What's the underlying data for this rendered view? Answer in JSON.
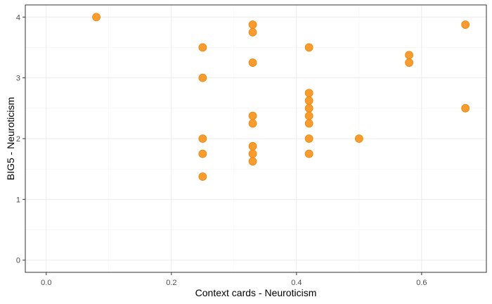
{
  "chart_data": {
    "type": "scatter",
    "title": "",
    "xlabel": "Context cards - Neuroticism",
    "ylabel": "BIG5 - Neuroticism",
    "xlim": [
      -0.0335,
      0.7035
    ],
    "ylim": [
      -0.2,
      4.2
    ],
    "x_ticks": [
      0.0,
      0.2,
      0.4,
      0.6
    ],
    "x_tick_labels": [
      "0.0",
      "0.2",
      "0.4",
      "0.6"
    ],
    "y_ticks": [
      0,
      1,
      2,
      3,
      4
    ],
    "y_tick_labels": [
      "0",
      "1",
      "2",
      "3",
      "4"
    ],
    "grid": true,
    "point_color": "#f7941d",
    "point_edge_color": "#e8880f",
    "points": [
      {
        "x": 0.08,
        "y": 4.0
      },
      {
        "x": 0.25,
        "y": 3.5
      },
      {
        "x": 0.25,
        "y": 3.0
      },
      {
        "x": 0.25,
        "y": 2.0
      },
      {
        "x": 0.25,
        "y": 1.75
      },
      {
        "x": 0.25,
        "y": 1.375
      },
      {
        "x": 0.33,
        "y": 3.875
      },
      {
        "x": 0.33,
        "y": 3.75
      },
      {
        "x": 0.33,
        "y": 3.25
      },
      {
        "x": 0.33,
        "y": 2.375
      },
      {
        "x": 0.33,
        "y": 2.25
      },
      {
        "x": 0.33,
        "y": 1.875
      },
      {
        "x": 0.33,
        "y": 1.75
      },
      {
        "x": 0.33,
        "y": 1.625
      },
      {
        "x": 0.42,
        "y": 3.5
      },
      {
        "x": 0.42,
        "y": 2.75
      },
      {
        "x": 0.42,
        "y": 2.625
      },
      {
        "x": 0.42,
        "y": 2.5
      },
      {
        "x": 0.42,
        "y": 2.375
      },
      {
        "x": 0.42,
        "y": 2.25
      },
      {
        "x": 0.42,
        "y": 2.0
      },
      {
        "x": 0.42,
        "y": 1.75
      },
      {
        "x": 0.5,
        "y": 2.0
      },
      {
        "x": 0.58,
        "y": 3.375
      },
      {
        "x": 0.58,
        "y": 3.25
      },
      {
        "x": 0.67,
        "y": 3.875
      },
      {
        "x": 0.67,
        "y": 2.5
      }
    ]
  }
}
